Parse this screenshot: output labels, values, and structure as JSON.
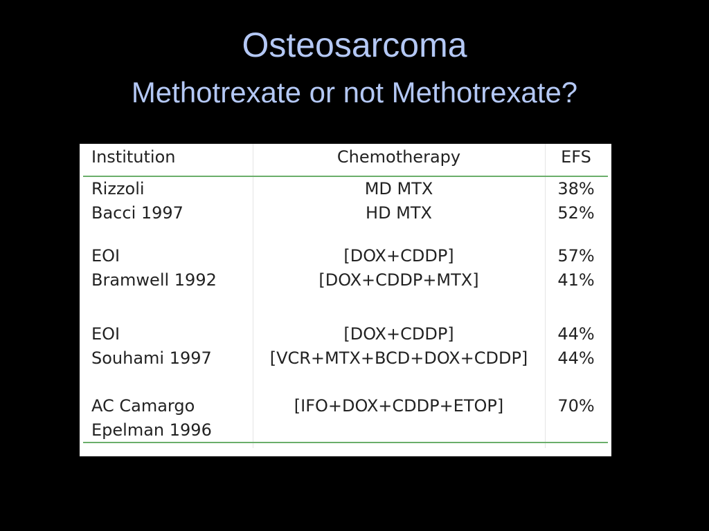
{
  "title": "Osteosarcoma",
  "subtitle": "Methotrexate or not Methotrexate?",
  "table": {
    "header": [
      "Institution",
      "Chemotherapy",
      "EFS"
    ],
    "groups": [
      {
        "institution": [
          "Rizzoli",
          "Bacci 1997"
        ],
        "chemotherapy": [
          "MD MTX",
          "HD MTX"
        ],
        "efs": [
          "38%",
          "52%"
        ]
      },
      {
        "institution": [
          "EOI",
          "Bramwell 1992"
        ],
        "chemotherapy": [
          "[DOX+CDDP]",
          "[DOX+CDDP+MTX]"
        ],
        "efs": [
          "57%",
          "41%"
        ]
      },
      {
        "institution": [
          "EOI",
          "Souhami 1997"
        ],
        "chemotherapy": [
          "[DOX+CDDP]",
          "[VCR+MTX+BCD+DOX+CDDP]"
        ],
        "efs": [
          "44%",
          "44%"
        ]
      },
      {
        "institution": [
          "AC Camargo",
          "Epelman 1996"
        ],
        "chemotherapy": [
          "[IFO+DOX+CDDP+ETOP]"
        ],
        "efs": [
          "70%"
        ]
      }
    ]
  }
}
